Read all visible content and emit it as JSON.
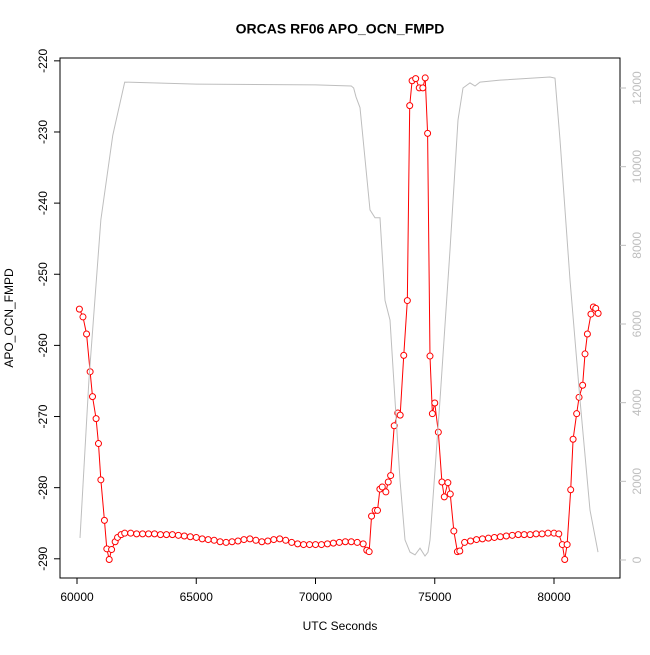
{
  "chart_data": {
    "type": "line",
    "title": "ORCAS RF06 APO_OCN_FMPD",
    "x_label": "UTC Seconds",
    "y_label": "APO_OCN_FMPD",
    "xlim": [
      59287,
      82767
    ],
    "ylim": [
      -292.7,
      -219.6
    ],
    "y2lim": [
      -458,
      12763
    ],
    "xticks": [
      60000,
      65000,
      70000,
      75000,
      80000
    ],
    "yticks": [
      -290,
      -280,
      -270,
      -260,
      -250,
      -240,
      -230,
      -220
    ],
    "y2ticks": [
      0,
      2000,
      4000,
      6000,
      8000,
      10000,
      12000
    ],
    "series": [
      {
        "name": "APO_OCN_FMPD",
        "color": "#ff0000",
        "x": [
          60100,
          60250,
          60400,
          60550,
          60650,
          60800,
          60900,
          61000,
          61150,
          61250,
          61350,
          61450,
          61600,
          61700,
          61850,
          62000,
          62250,
          62500,
          62750,
          63000,
          63250,
          63500,
          63750,
          64000,
          64250,
          64500,
          64750,
          65000,
          65250,
          65500,
          65750,
          66000,
          66250,
          66500,
          66750,
          67000,
          67250,
          67500,
          67750,
          68000,
          68250,
          68500,
          68750,
          69000,
          69250,
          69500,
          69750,
          70000,
          70250,
          70500,
          70750,
          71000,
          71250,
          71500,
          71750,
          72000,
          72150,
          72250,
          72350,
          72500,
          72600,
          72700,
          72800,
          72950,
          73050,
          73150,
          73300,
          73450,
          73550,
          73700,
          73850,
          73950,
          74050,
          74200,
          74350,
          74500,
          74600,
          74700,
          74800,
          74900,
          75000,
          75150,
          75300,
          75400,
          75550,
          75650,
          75800,
          75950,
          76050,
          76250,
          76500,
          76750,
          77000,
          77250,
          77500,
          77750,
          78000,
          78250,
          78500,
          78750,
          79000,
          79250,
          79500,
          79750,
          80000,
          80200,
          80350,
          80450,
          80550,
          80700,
          80800,
          80950,
          81050,
          81200,
          81300,
          81400,
          81550,
          81650,
          81750,
          81850
        ],
        "values": [
          -254.9,
          -256,
          -258.4,
          -263.7,
          -267.2,
          -270.3,
          -273.8,
          -278.9,
          -284.6,
          -288.6,
          -290.1,
          -288.7,
          -287.6,
          -287,
          -286.6,
          -286.4,
          -286.4,
          -286.5,
          -286.5,
          -286.5,
          -286.5,
          -286.6,
          -286.6,
          -286.6,
          -286.7,
          -286.8,
          -286.9,
          -287.0,
          -287.2,
          -287.3,
          -287.4,
          -287.6,
          -287.7,
          -287.6,
          -287.5,
          -287.3,
          -287.2,
          -287.4,
          -287.6,
          -287.5,
          -287.3,
          -287.2,
          -287.4,
          -287.7,
          -287.9,
          -288.0,
          -288.0,
          -288.0,
          -288.0,
          -287.9,
          -287.8,
          -287.7,
          -287.6,
          -287.6,
          -287.7,
          -287.9,
          -288.8,
          -289,
          -284,
          -283.2,
          -283.2,
          -280.2,
          -279.9,
          -280.6,
          -279.2,
          -278.3,
          -271.3,
          -269.5,
          -269.8,
          -261.4,
          -253.7,
          -226.3,
          -222.8,
          -222.5,
          -223.8,
          -223.8,
          -222.4,
          -230.2,
          -261.5,
          -269.6,
          -268.1,
          -272.2,
          -279.2,
          -281.3,
          -279.3,
          -280.9,
          -286.1,
          -289,
          -288.9,
          -287.7,
          -287.5,
          -287.3,
          -287.2,
          -287.1,
          -287.0,
          -286.9,
          -286.8,
          -286.7,
          -286.6,
          -286.6,
          -286.6,
          -286.5,
          -286.5,
          -286.4,
          -286.4,
          -286.5,
          -288,
          -290.1,
          -288,
          -280.3,
          -273.2,
          -269.6,
          -267.3,
          -265.6,
          -261.2,
          -258.4,
          -255.6,
          -254.6,
          -254.8,
          -255.5
        ]
      },
      {
        "color": "#bebebe",
        "axis": "y2",
        "x": [
          60126,
          60500,
          61000,
          61500,
          62000,
          65000,
          70000,
          71500,
          71600,
          71700,
          71866,
          72285,
          72495,
          72704,
          72914,
          73124,
          73333,
          73543,
          73753,
          73962,
          74172,
          74382,
          74591,
          74717,
          74801,
          75220,
          75639,
          75975,
          76184,
          76478,
          76688,
          76897,
          77736,
          79832,
          80042,
          80252,
          80671,
          81090,
          81509,
          81845
        ],
        "values": [
          560,
          4580,
          8650,
          10800,
          12150,
          12100,
          12080,
          12050,
          12000,
          11770,
          11500,
          8900,
          8700,
          8700,
          6600,
          6100,
          4070,
          2030,
          510,
          200,
          130,
          300,
          100,
          200,
          510,
          4070,
          7880,
          11190,
          12000,
          12130,
          12050,
          12150,
          12200,
          12280,
          12250,
          10680,
          7120,
          4070,
          1270,
          200
        ]
      }
    ]
  }
}
